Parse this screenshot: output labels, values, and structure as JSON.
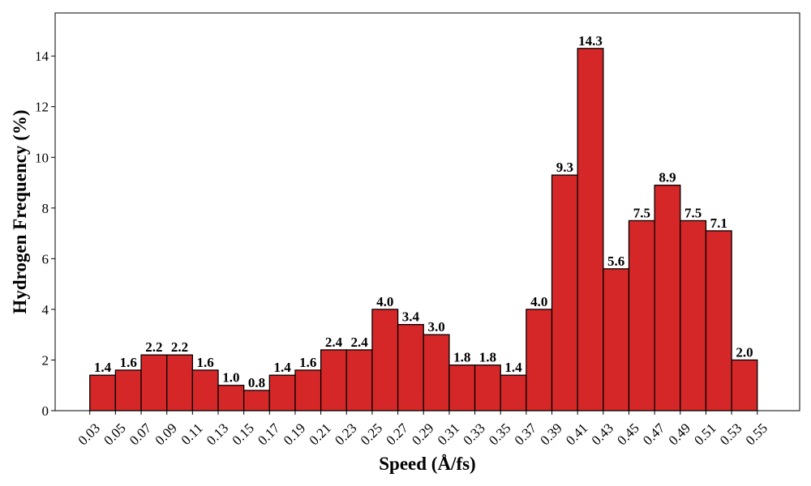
{
  "chart_data": {
    "type": "histogram",
    "title": "",
    "xlabel": "Speed (Å/fs)",
    "ylabel": "Hydrogen Frequency (%)",
    "bin_edges": [
      "0.03",
      "0.05",
      "0.07",
      "0.09",
      "0.11",
      "0.13",
      "0.15",
      "0.17",
      "0.19",
      "0.21",
      "0.23",
      "0.25",
      "0.27",
      "0.29",
      "0.31",
      "0.33",
      "0.35",
      "0.37",
      "0.39",
      "0.41",
      "0.43",
      "0.45",
      "0.47",
      "0.49",
      "0.51",
      "0.53",
      "0.55"
    ],
    "values": [
      1.4,
      1.6,
      2.2,
      2.2,
      1.6,
      1.0,
      0.8,
      1.4,
      1.6,
      2.4,
      2.4,
      4.0,
      3.4,
      3.0,
      1.8,
      1.8,
      1.4,
      4.0,
      9.3,
      14.3,
      5.6,
      7.5,
      8.9,
      7.5,
      7.1,
      2.0
    ],
    "value_labels": [
      "1.4",
      "1.6",
      "2.2",
      "2.2",
      "1.6",
      "1.0",
      "0.8",
      "1.4",
      "1.6",
      "2.4",
      "2.4",
      "4.0",
      "3.4",
      "3.0",
      "1.8",
      "1.8",
      "1.4",
      "4.0",
      "9.3",
      "14.3",
      "5.6",
      "7.5",
      "8.9",
      "7.5",
      "7.1",
      "2.0"
    ],
    "yticks": [
      "0",
      "2",
      "4",
      "6",
      "8",
      "10",
      "12",
      "14"
    ],
    "ylim": [
      0,
      15.7
    ],
    "xlim": [
      0.003,
      0.583
    ],
    "grid": false,
    "bar_color": "#d62728",
    "edge_color": "#000000"
  }
}
